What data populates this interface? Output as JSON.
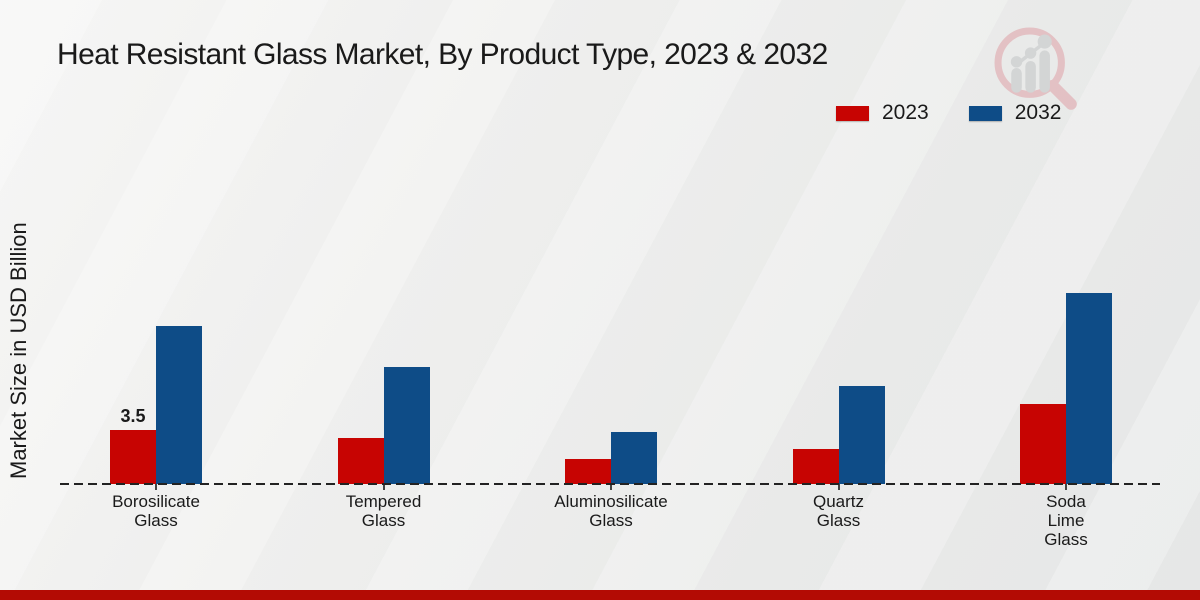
{
  "title": "Heat Resistant Glass Market, By Product Type, 2023 & 2032",
  "y_axis_label": "Market Size in USD Billion",
  "legend": {
    "items": [
      {
        "label": "2023",
        "color": "#c70402"
      },
      {
        "label": "2032",
        "color": "#0e4c87"
      }
    ],
    "position": "top-right"
  },
  "colors": {
    "series_2023": "#c70402",
    "series_2032": "#0e4c87",
    "axis": "#222222",
    "text": "#1a1a1a",
    "footer_strip": "#b30b04",
    "background": "#ededec"
  },
  "logo": {
    "name": "market-research-magnifier-logo"
  },
  "chart_data": {
    "type": "bar",
    "title": "Heat Resistant Glass Market, By Product Type, 2023 & 2032",
    "xlabel": "",
    "ylabel": "Market Size in USD Billion",
    "categories": [
      "Borosilicate Glass",
      "Tempered Glass",
      "Aluminosilicate Glass",
      "Quartz Glass",
      "Soda Lime Glass"
    ],
    "category_label_lines": [
      [
        "Borosilicate",
        "Glass"
      ],
      [
        "Tempered",
        "Glass"
      ],
      [
        "Aluminosilicate",
        "Glass"
      ],
      [
        "Quartz",
        "Glass"
      ],
      [
        "Soda",
        "Lime",
        "Glass"
      ]
    ],
    "series": [
      {
        "name": "2023",
        "color": "#c70402",
        "values": [
          3.5,
          3.0,
          1.6,
          2.3,
          5.2
        ]
      },
      {
        "name": "2032",
        "color": "#0e4c87",
        "values": [
          10.3,
          7.6,
          3.4,
          6.4,
          12.4
        ]
      }
    ],
    "data_labels": [
      {
        "series": "2023",
        "category_index": 0,
        "text": "3.5"
      }
    ],
    "ylim": [
      0,
      13
    ],
    "grid": false,
    "baseline_style": "dashed",
    "legend_position": "top-right"
  }
}
